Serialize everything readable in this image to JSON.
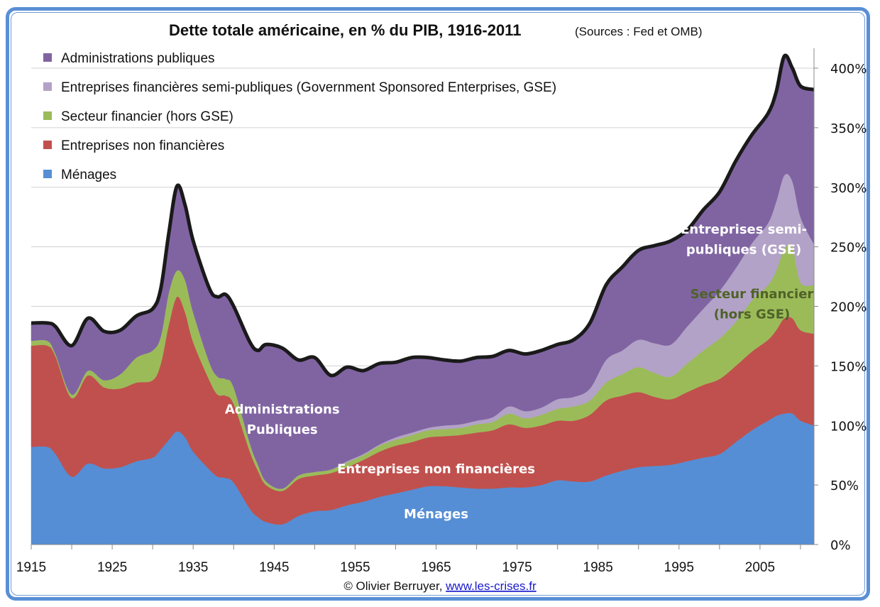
{
  "chart_data": {
    "type": "area",
    "stacked": true,
    "title": "Dette totale américaine, en % du PIB, 1916-2011",
    "subtitle": "(Sources : Fed et OMB)",
    "xlabel": "",
    "ylabel": "",
    "ylim": [
      0,
      400
    ],
    "xlim": [
      1915,
      2011
    ],
    "grid": true,
    "y_axis_side": "right",
    "legend_position": "top-left",
    "x_ticks": [
      "1915",
      "1925",
      "1935",
      "1945",
      "1955",
      "1965",
      "1975",
      "1985",
      "1995",
      "2005"
    ],
    "y_ticks": [
      "0%",
      "50%",
      "100%",
      "150%",
      "200%",
      "250%",
      "300%",
      "350%",
      "400%"
    ],
    "x": [
      1916,
      1917,
      1918,
      1920,
      1922,
      1924,
      1926,
      1928,
      1930,
      1931,
      1932,
      1933,
      1934,
      1935,
      1937,
      1938,
      1939,
      1940,
      1942,
      1943,
      1944,
      1946,
      1948,
      1950,
      1952,
      1954,
      1956,
      1958,
      1960,
      1962,
      1964,
      1966,
      1968,
      1970,
      1972,
      1974,
      1976,
      1978,
      1980,
      1982,
      1984,
      1986,
      1988,
      1990,
      1992,
      1994,
      1996,
      1998,
      2000,
      2002,
      2004,
      2006,
      2007,
      2008,
      2009,
      2010,
      2011
    ],
    "series": [
      {
        "name": "Ménages",
        "color": "#558ed5",
        "values": [
          82,
          82,
          76,
          57,
          68,
          64,
          65,
          70,
          73,
          80,
          88,
          95,
          90,
          78,
          63,
          57,
          56,
          52,
          30,
          23,
          19,
          17,
          24,
          28,
          29,
          33,
          36,
          40,
          43,
          46,
          49,
          49,
          48,
          47,
          47,
          48,
          48,
          50,
          54,
          53,
          53,
          58,
          62,
          65,
          66,
          67,
          70,
          73,
          76,
          86,
          96,
          104,
          108,
          110,
          110,
          104,
          100
        ]
      },
      {
        "name": "Entreprises non financières",
        "color": "#c0504d",
        "values": [
          85,
          85,
          82,
          66,
          74,
          68,
          66,
          66,
          65,
          72,
          97,
          113,
          105,
          92,
          75,
          69,
          69,
          66,
          48,
          39,
          31,
          28,
          31,
          30,
          31,
          32,
          35,
          38,
          40,
          40,
          41,
          42,
          44,
          47,
          49,
          53,
          50,
          50,
          50,
          51,
          56,
          63,
          63,
          63,
          58,
          55,
          58,
          61,
          63,
          64,
          66,
          68,
          72,
          80,
          80,
          76,
          77
        ]
      },
      {
        "name": "Secteur financier (hors GSE)",
        "color": "#9bbb59",
        "values": [
          4,
          4,
          2,
          3,
          4,
          6,
          12,
          21,
          25,
          23,
          27,
          22,
          27,
          25,
          15,
          15,
          14,
          14,
          7,
          5,
          3,
          2,
          3,
          3,
          3,
          4,
          4,
          5,
          5,
          6,
          6,
          6,
          6,
          7,
          7,
          9,
          8,
          9,
          10,
          12,
          12,
          15,
          18,
          21,
          20,
          19,
          24,
          29,
          34,
          37,
          43,
          46,
          50,
          58,
          60,
          40,
          41
        ]
      },
      {
        "name": "Entreprises financières semi-publiques (Government Sponsored Enterprises, GSE)",
        "color": "#b3a2c7",
        "values": [
          0,
          0,
          0,
          0,
          0,
          0,
          0,
          0,
          0,
          0,
          0,
          0,
          0,
          0,
          0,
          0,
          0,
          0,
          0,
          0,
          0,
          0,
          0,
          0,
          0,
          1,
          1,
          1,
          2,
          2,
          2,
          3,
          3,
          3,
          4,
          6,
          6,
          6,
          8,
          8,
          10,
          19,
          20,
          23,
          25,
          27,
          31,
          35,
          40,
          45,
          48,
          52,
          58,
          62,
          55,
          55,
          34
        ]
      },
      {
        "name": "Administrations publiques",
        "color": "#8064a2",
        "values": [
          15,
          15,
          23,
          41,
          44,
          41,
          37,
          35,
          35,
          40,
          50,
          71,
          63,
          60,
          62,
          67,
          71,
          68,
          85,
          96,
          115,
          118,
          97,
          96,
          79,
          79,
          70,
          68,
          63,
          63,
          59,
          55,
          53,
          53,
          51,
          47,
          48,
          48,
          46,
          48,
          55,
          63,
          70,
          75,
          82,
          87,
          81,
          83,
          83,
          90,
          91,
          92,
          92,
          100,
          95,
          110,
          130
        ]
      }
    ],
    "total_line": {
      "name": "Total",
      "color": "#1a1a1a",
      "values": [
        186,
        186,
        183,
        167,
        190,
        179,
        180,
        192,
        198,
        215,
        262,
        301,
        285,
        255,
        215,
        208,
        210,
        200,
        170,
        163,
        168,
        165,
        155,
        157,
        142,
        149,
        146,
        152,
        153,
        157,
        157,
        155,
        154,
        157,
        158,
        163,
        160,
        163,
        168,
        172,
        186,
        218,
        233,
        247,
        251,
        255,
        264,
        281,
        296,
        322,
        344,
        362,
        380,
        410,
        400,
        385,
        382
      ]
    },
    "annotations": [
      {
        "text": "Administrations",
        "color": "#ffffff",
        "x": 1946,
        "y": 110
      },
      {
        "text": "Publiques",
        "color": "#ffffff",
        "x": 1946,
        "y": 93
      },
      {
        "text": "Entreprises non financières",
        "color": "#ffffff",
        "x": 1965,
        "y": 60
      },
      {
        "text": "Ménages",
        "color": "#ffffff",
        "x": 1965,
        "y": 22
      },
      {
        "text": "Entreprises semi-",
        "color": "#ffffff",
        "x": 2003,
        "y": 261
      },
      {
        "text": "publiques (GSE)",
        "color": "#ffffff",
        "x": 2003,
        "y": 244
      },
      {
        "text": "Secteur financier",
        "color": "#4f6228",
        "x": 2004,
        "y": 207
      },
      {
        "text": "(hors GSE)",
        "color": "#4f6228",
        "x": 2004,
        "y": 190
      }
    ]
  },
  "legend": [
    {
      "label": "Administrations publiques",
      "color": "#8064a2"
    },
    {
      "label": "Entreprises financières semi-publiques (Government Sponsored Enterprises, GSE)",
      "color": "#b3a2c7"
    },
    {
      "label": "Secteur financier (hors GSE)",
      "color": "#9bbb59"
    },
    {
      "label": "Entreprises non financières",
      "color": "#c0504d"
    },
    {
      "label": "Ménages",
      "color": "#558ed5"
    }
  ],
  "credit": {
    "text": "© Olivier Berruyer, ",
    "link": "www.les-crises.fr"
  }
}
